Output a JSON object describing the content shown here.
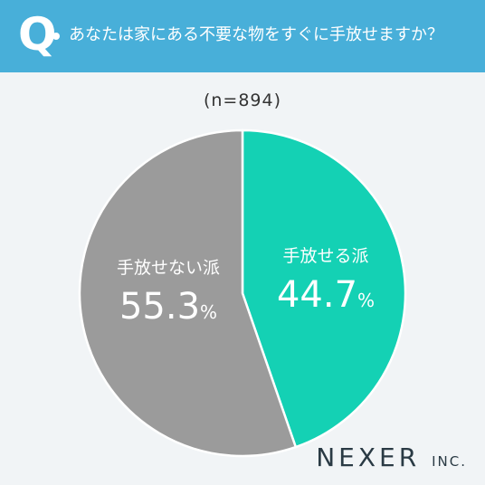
{
  "header": {
    "q_letter": "Q",
    "question": "あなたは家にある不要な物をすぐに手放せますか？"
  },
  "sample_size": "(n=894)",
  "colors": {
    "header_bg": "#48afd9",
    "slice_keep": "#9b9b9b",
    "slice_let_go": "#14d1b4",
    "background": "#f1f4f6"
  },
  "chart_data": {
    "type": "pie",
    "title": "あなたは家にある不要な物をすぐに手放せますか？",
    "n": 894,
    "slices": [
      {
        "label": "手放せる派",
        "value": 44.7,
        "display": "44.7",
        "unit": "%",
        "color": "#14d1b4"
      },
      {
        "label": "手放せない派",
        "value": 55.3,
        "display": "55.3",
        "unit": "%",
        "color": "#9b9b9b"
      }
    ],
    "start": "12 o'clock",
    "direction": "clockwise"
  },
  "brand": {
    "name": "NEXER",
    "suffix": "INC."
  }
}
